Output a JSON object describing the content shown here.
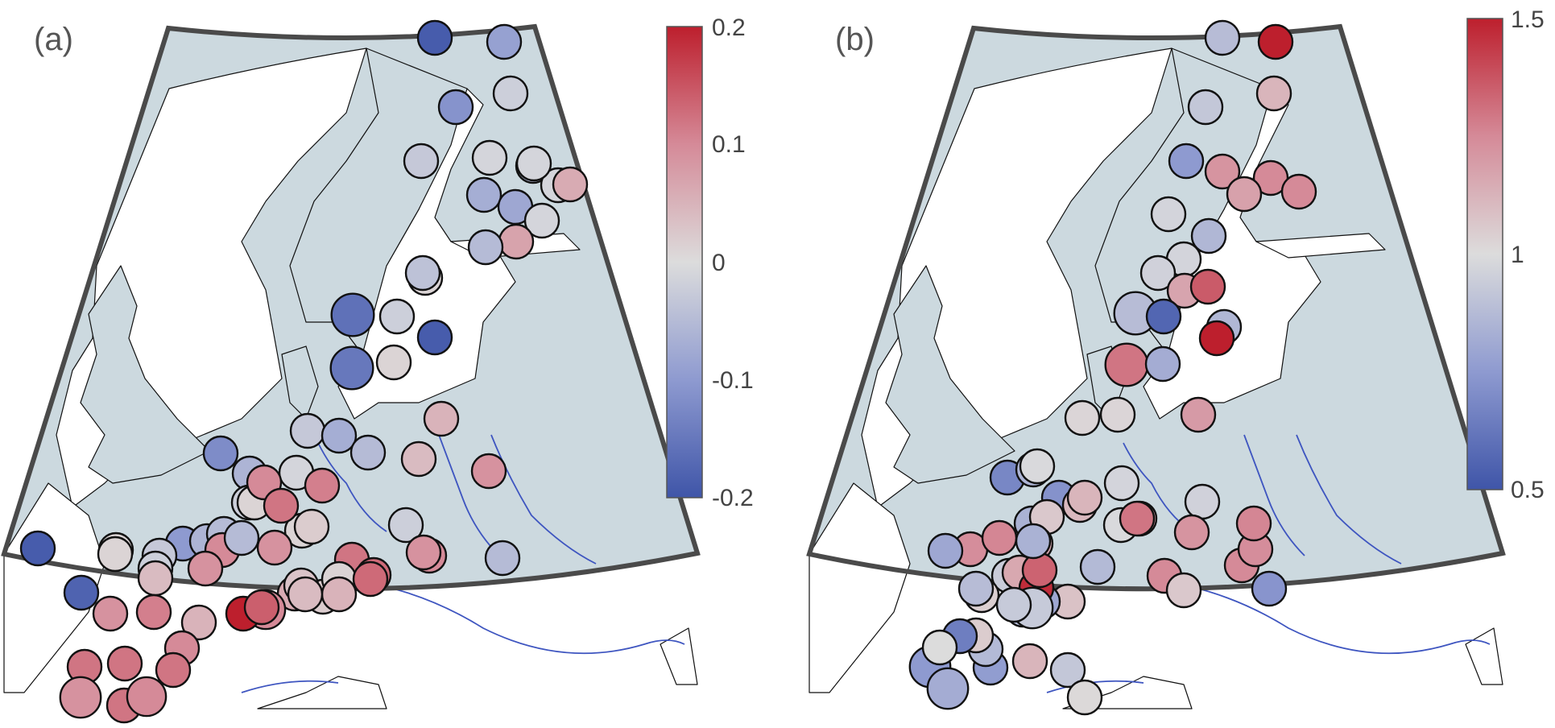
{
  "panels": [
    {
      "label": "(a)",
      "colorbar": {
        "min": -0.2,
        "max": 0.2,
        "ticks": [
          "0.2",
          "0.1",
          "0",
          "-0.1",
          "-0.2"
        ],
        "tick_values": [
          0.2,
          0.1,
          0,
          -0.1,
          -0.2
        ]
      },
      "stations": [
        [
          -0.19,
          1
        ],
        [
          -0.09,
          1
        ],
        [
          -0.11,
          1
        ],
        [
          -0.02,
          1
        ],
        [
          -0.03,
          1
        ],
        [
          -0.01,
          1
        ],
        [
          -0.05,
          1
        ],
        [
          -0.01,
          1
        ],
        [
          -0.07,
          1
        ],
        [
          -0.08,
          1
        ],
        [
          -0.01,
          1
        ],
        [
          0.06,
          1
        ],
        [
          -0.01,
          1
        ],
        [
          0.07,
          1
        ],
        [
          -0.05,
          1
        ],
        [
          0.01,
          1
        ],
        [
          -0.04,
          1
        ],
        [
          -0.16,
          1.25
        ],
        [
          -0.02,
          1
        ],
        [
          -0.19,
          1
        ],
        [
          -0.15,
          1.25
        ],
        [
          0.01,
          1
        ],
        [
          -0.03,
          1
        ],
        [
          -0.07,
          1
        ],
        [
          0.05,
          1
        ],
        [
          -0.05,
          1
        ],
        [
          -0.12,
          1
        ],
        [
          -0.06,
          1
        ],
        [
          -0.01,
          1
        ],
        [
          0.04,
          1
        ],
        [
          0.09,
          1
        ],
        [
          -0.02,
          1
        ],
        [
          0.01,
          1
        ],
        [
          -0.1,
          1
        ],
        [
          -0.06,
          1
        ],
        [
          -0.05,
          1
        ],
        [
          -0.02,
          1
        ],
        [
          0.01,
          1
        ],
        [
          0.1,
          1
        ],
        [
          0.1,
          1
        ],
        [
          0.01,
          1
        ],
        [
          -0.03,
          1
        ],
        [
          -0.05,
          1
        ],
        [
          0.09,
          1
        ],
        [
          0.11,
          1
        ],
        [
          0.12,
          1
        ],
        [
          0.02,
          1
        ],
        [
          0.09,
          1
        ],
        [
          -0.02,
          1
        ],
        [
          0.02,
          1
        ],
        [
          0.12,
          1
        ],
        [
          0.01,
          1
        ],
        [
          0.13,
          1
        ],
        [
          0.1,
          1
        ],
        [
          0.09,
          1
        ],
        [
          -0.05,
          1
        ],
        [
          -0.19,
          1
        ],
        [
          0.01,
          1
        ],
        [
          0.04,
          1
        ],
        [
          0.13,
          1
        ],
        [
          0.06,
          1
        ],
        [
          -0.18,
          1
        ],
        [
          0.09,
          1
        ],
        [
          0.1,
          1.15
        ],
        [
          0.03,
          1
        ],
        [
          0.11,
          1
        ],
        [
          0.2,
          1
        ],
        [
          0.14,
          1
        ],
        [
          0.05,
          1
        ],
        [
          0.04,
          1
        ],
        [
          0.05,
          1
        ],
        [
          0.1,
          1
        ],
        [
          0.12,
          1
        ],
        [
          0.12,
          1
        ],
        [
          0.12,
          1
        ],
        [
          0.09,
          1.2
        ],
        [
          0.12,
          1
        ],
        [
          0.1,
          1.15
        ]
      ]
    },
    {
      "label": "(b)",
      "colorbar": {
        "min": 0.5,
        "max": 1.5,
        "ticks": [
          "1.5",
          "1",
          "0.5"
        ],
        "tick_values": [
          1.5,
          1.0,
          0.5
        ]
      },
      "stations": [
        [
          0.88,
          1
        ],
        [
          1.5,
          1
        ],
        [
          0.92,
          1
        ],
        [
          1.12,
          1
        ],
        [
          0.75,
          1
        ],
        [
          1.22,
          1
        ],
        [
          1.25,
          1
        ],
        [
          1.18,
          1
        ],
        [
          1.25,
          1
        ],
        [
          0.97,
          1
        ],
        [
          0.86,
          1
        ],
        [
          0.97,
          1
        ],
        [
          0.96,
          1
        ],
        [
          1.17,
          1
        ],
        [
          1.36,
          1
        ],
        [
          0.88,
          1.25
        ],
        [
          0.56,
          1
        ],
        [
          0.86,
          1
        ],
        [
          1.3,
          1.25
        ],
        [
          0.82,
          1
        ],
        [
          1.5,
          1
        ],
        [
          1.02,
          1
        ],
        [
          1.02,
          1
        ],
        [
          1.2,
          1
        ],
        [
          0.68,
          1
        ],
        [
          0.85,
          1
        ],
        [
          0.72,
          1
        ],
        [
          0.99,
          1
        ],
        [
          0.84,
          1
        ],
        [
          1.11,
          1
        ],
        [
          1.12,
          1
        ],
        [
          0.99,
          1
        ],
        [
          1.18,
          1
        ],
        [
          0.97,
          1
        ],
        [
          0.96,
          1
        ],
        [
          1.3,
          1
        ],
        [
          1.25,
          1
        ],
        [
          1.25,
          1
        ],
        [
          1.24,
          1
        ],
        [
          1.06,
          1
        ],
        [
          0.73,
          1
        ],
        [
          1.22,
          1
        ],
        [
          1.26,
          1
        ],
        [
          1.06,
          1
        ],
        [
          0.94,
          1
        ],
        [
          1.24,
          1
        ],
        [
          1.16,
          1
        ],
        [
          0.8,
          1
        ],
        [
          1.26,
          1
        ],
        [
          1.04,
          1
        ],
        [
          1.16,
          1
        ],
        [
          0.88,
          1
        ],
        [
          1.08,
          1
        ],
        [
          0.87,
          1
        ],
        [
          0.8,
          1
        ],
        [
          0.92,
          1
        ],
        [
          1.01,
          1
        ],
        [
          0.87,
          1
        ],
        [
          1.47,
          1
        ],
        [
          1.34,
          1
        ],
        [
          0.84,
          1
        ],
        [
          0.93,
          1.2
        ],
        [
          0.93,
          1
        ],
        [
          1.12,
          1
        ],
        [
          0.76,
          1
        ],
        [
          0.87,
          1
        ],
        [
          1.05,
          1
        ],
        [
          0.65,
          1
        ],
        [
          0.75,
          1.2
        ],
        [
          1.0,
          1
        ],
        [
          0.82,
          1.2
        ]
      ]
    }
  ]
}
